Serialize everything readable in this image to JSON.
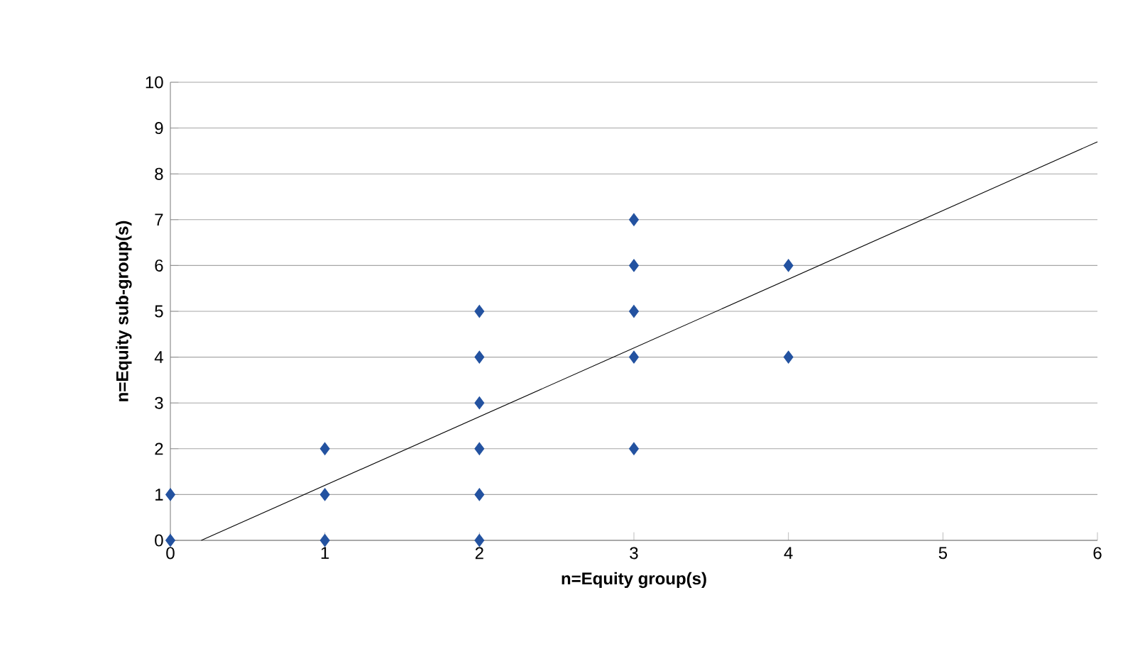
{
  "chart_data": {
    "type": "scatter",
    "xlabel": "n=Equity group(s)",
    "ylabel": "n=Equity sub-group(s)",
    "grid": "y",
    "xlim": [
      0,
      6
    ],
    "ylim": [
      0,
      10
    ],
    "xticks": [
      0,
      1,
      2,
      3,
      4,
      5,
      6
    ],
    "yticks": [
      0,
      1,
      2,
      3,
      4,
      5,
      6,
      7,
      8,
      9,
      10
    ],
    "series": [
      {
        "marker": "diamond",
        "color": "#2352a0",
        "x": [
          0,
          0,
          1,
          1,
          1,
          2,
          2,
          2,
          2,
          2,
          2,
          3,
          3,
          3,
          3,
          3,
          4,
          4
        ],
        "values": [
          0,
          1,
          0,
          1,
          2,
          0,
          1,
          2,
          3,
          4,
          5,
          2,
          4,
          5,
          6,
          7,
          4,
          6
        ]
      },
      {
        "type": "line",
        "marker": "none",
        "color": "#000000",
        "x": [
          0.2,
          6
        ],
        "values": [
          0,
          8.7
        ]
      }
    ]
  }
}
